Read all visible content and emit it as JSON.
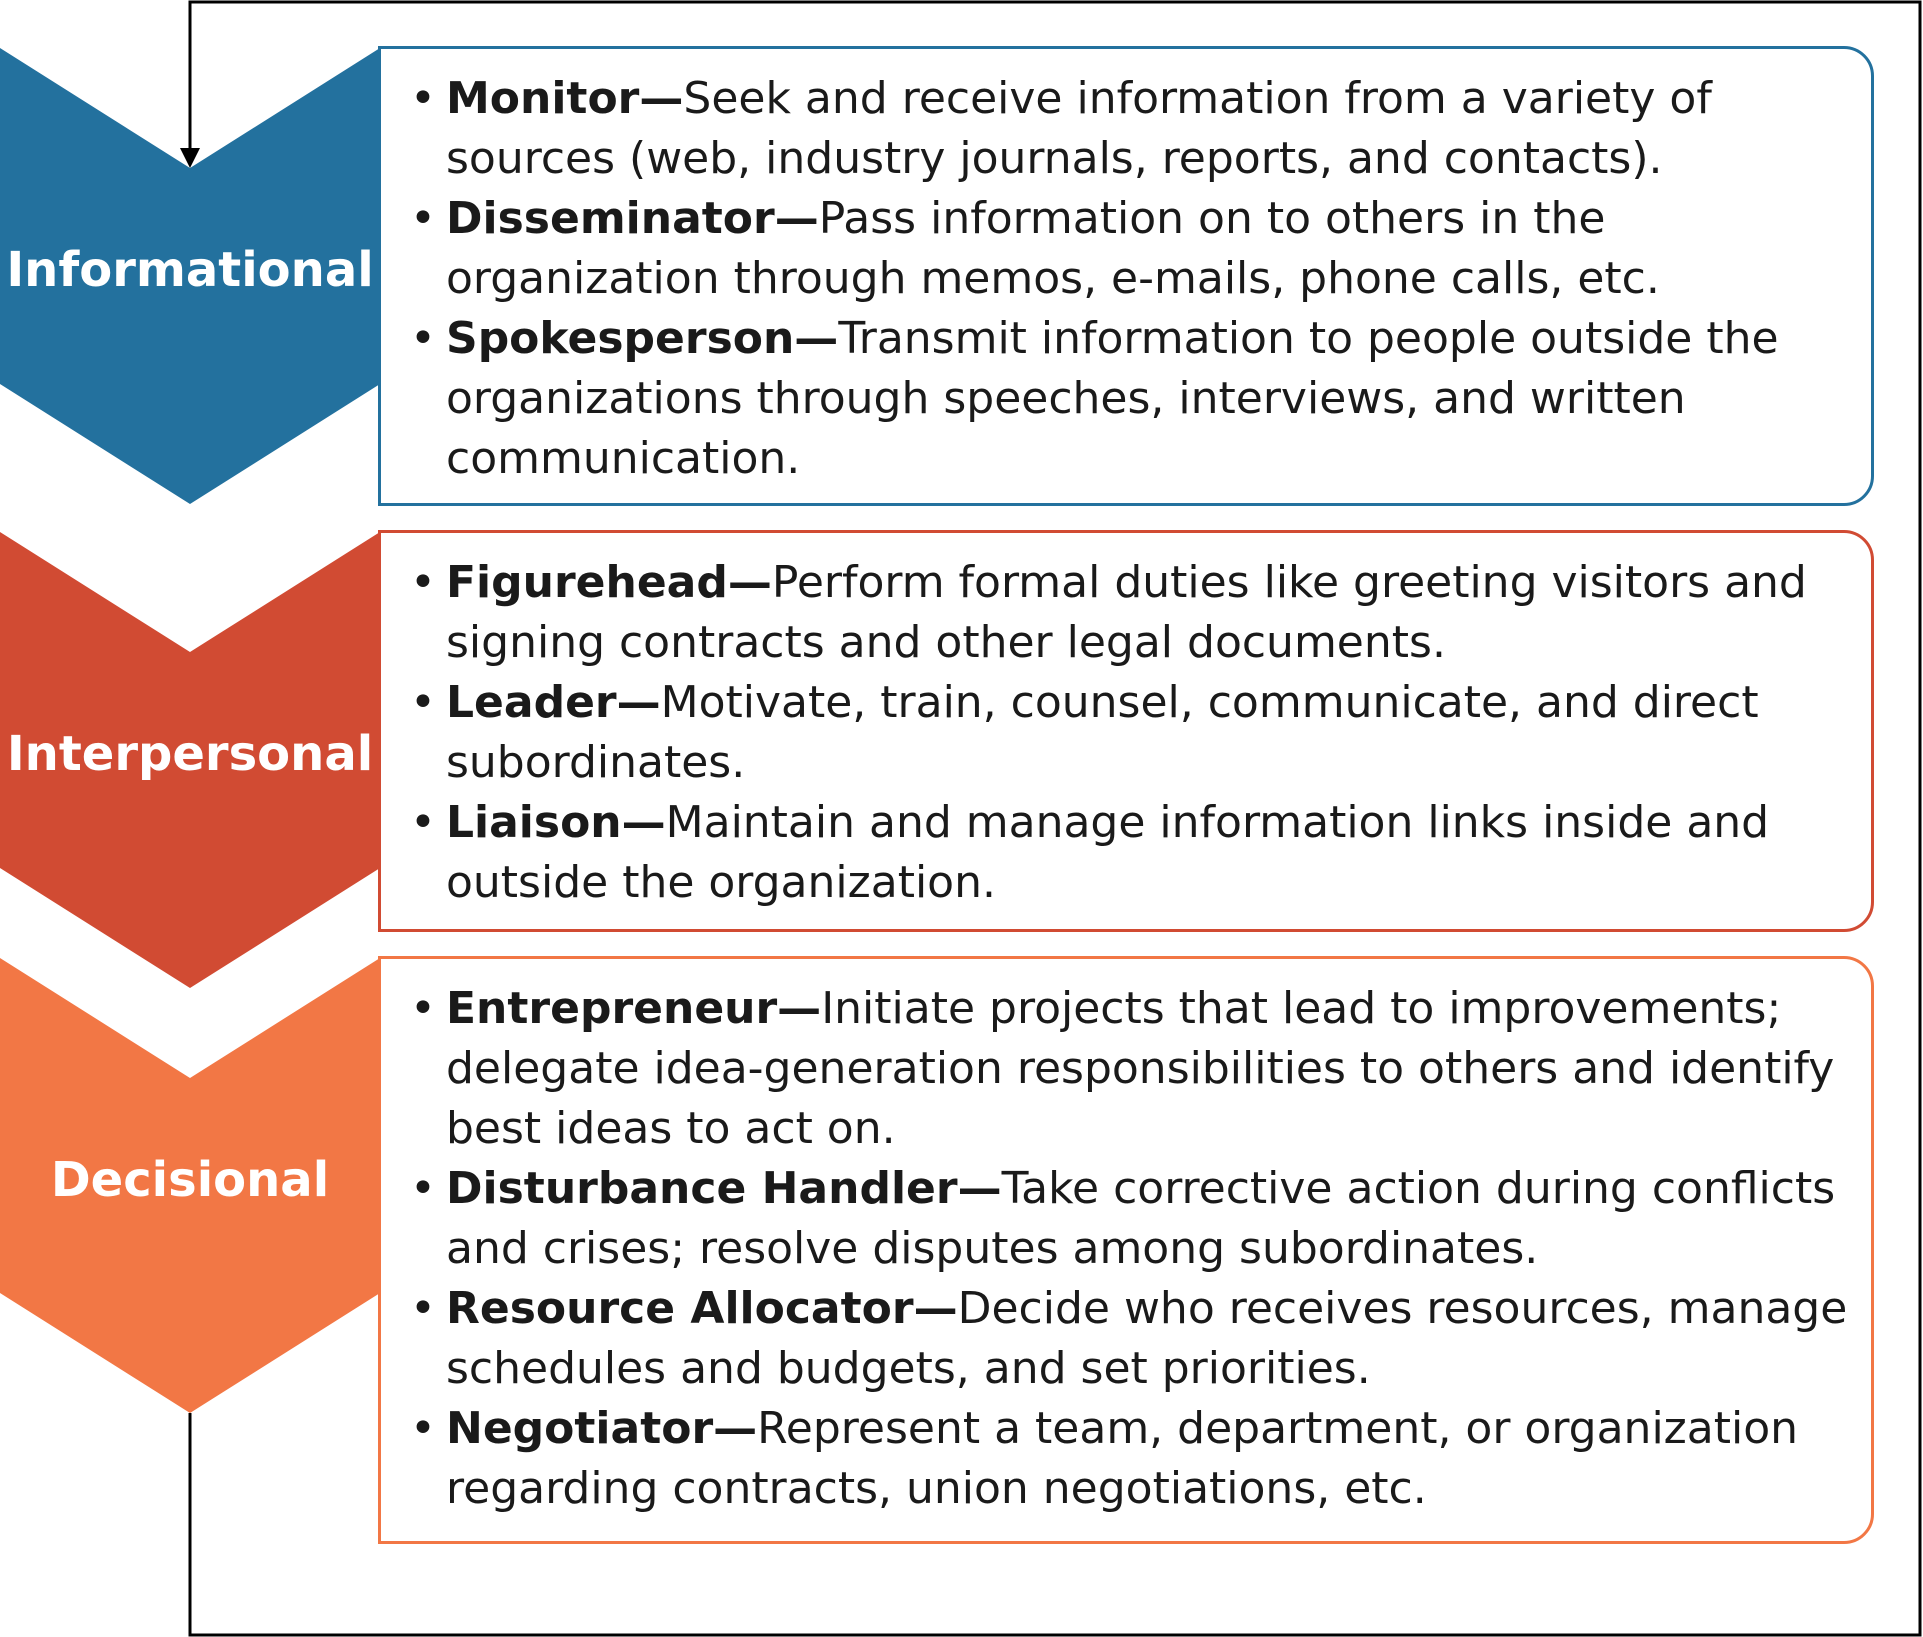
{
  "colors": {
    "informational": "#23719e",
    "interpersonal": "#d14b33",
    "decisional": "#f27745",
    "text": "#1a1a1a",
    "line": "#000000"
  },
  "sections": [
    {
      "label": "Informational",
      "items": [
        {
          "title": "Monitor—",
          "text": "Seek and receive information from a variety of sources (web, industry journals, reports, and contacts)."
        },
        {
          "title": "Disseminator—",
          "text": "Pass information on to others in the organization through memos, e-mails, phone calls, etc."
        },
        {
          "title": "Spokesperson—",
          "text": "Transmit information to people outside the organizations through speeches, interviews, and written communication."
        }
      ]
    },
    {
      "label": "Interpersonal",
      "items": [
        {
          "title": "Figurehead—",
          "text": "Perform formal duties like greeting visitors and signing contracts and other legal documents."
        },
        {
          "title": "Leader—",
          "text": "Motivate, train, counsel, communicate, and direct subordinates."
        },
        {
          "title": "Liaison—",
          "text": "Maintain and manage information links inside and outside the organization."
        }
      ]
    },
    {
      "label": "Decisional",
      "items": [
        {
          "title": "Entrepreneur—",
          "text": "Initiate projects that lead to improvements; delegate idea-generation responsibilities to others and identify best ideas to act on."
        },
        {
          "title": "Disturbance Handler—",
          "text": "Take corrective action during conflicts and crises; resolve disputes among subordinates."
        },
        {
          "title": "Resource Allocator—",
          "text": "Decide who receives resources, manage schedules and budgets, and set priorities."
        },
        {
          "title": "Negotiator—",
          "text": "Represent a team, department, or organization regarding contracts, union negotiations, etc."
        }
      ]
    }
  ]
}
